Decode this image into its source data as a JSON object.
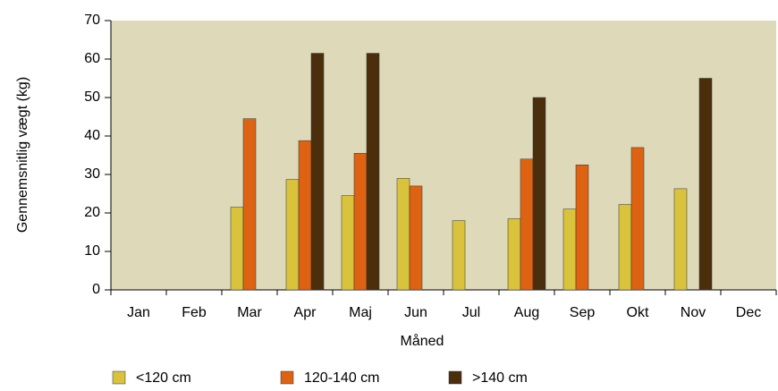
{
  "chart_data": {
    "type": "bar",
    "x_label": "Måned",
    "y_label": "Gennemsnitlig vægt (kg)",
    "categories": [
      "Jan",
      "Feb",
      "Mar",
      "Apr",
      "Maj",
      "Jun",
      "Jul",
      "Aug",
      "Sep",
      "Okt",
      "Nov",
      "Dec"
    ],
    "series": [
      {
        "name": "<120 cm",
        "color": "#d9c23c",
        "values": [
          null,
          null,
          21.5,
          28.7,
          24.5,
          29,
          18,
          18.5,
          21,
          22.2,
          26.3,
          null
        ]
      },
      {
        "name": "120-140 cm",
        "color": "#dd6212",
        "values": [
          null,
          null,
          44.5,
          38.8,
          35.5,
          27,
          null,
          34,
          32.5,
          37,
          null,
          null
        ]
      },
      {
        "name": ">140 cm",
        "color": "#4b2e0c",
        "values": [
          null,
          null,
          null,
          61.5,
          61.5,
          null,
          null,
          50,
          null,
          null,
          55,
          null
        ]
      }
    ],
    "ylim": [
      0,
      70
    ],
    "yticks": [
      0,
      10,
      20,
      30,
      40,
      50,
      60,
      70
    ],
    "background": "#ddd9b9"
  }
}
